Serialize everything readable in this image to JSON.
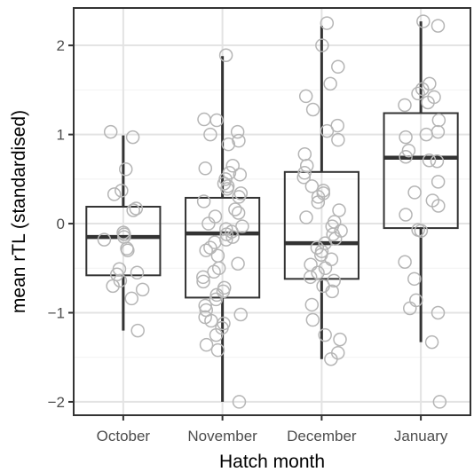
{
  "chart_data": {
    "type": "box",
    "title": "",
    "xlabel": "Hatch month",
    "ylabel": "mean rTL (standardised)",
    "categories": [
      "October",
      "November",
      "December",
      "January"
    ],
    "ylim": [
      -2.15,
      2.42
    ],
    "y_ticks": [
      -2,
      -1,
      0,
      1,
      2
    ],
    "y_tick_labels": [
      "−2",
      "−1",
      "0",
      "1",
      "2"
    ],
    "grid": true,
    "legend": "none",
    "colors": {
      "background": "#ffffff",
      "panel_border": "#333333",
      "grid_major": "#e3e3e3",
      "grid_minor": "#f2f2f2",
      "box_stroke": "#333333",
      "median": "#333333",
      "whisker": "#333333",
      "point_stroke": "#b5b5b5"
    },
    "boxes": [
      {
        "category": "October",
        "q1": -0.58,
        "median": -0.15,
        "q3": 0.19,
        "whisker_low": -1.2,
        "whisker_high": 0.99
      },
      {
        "category": "November",
        "q1": -0.83,
        "median": -0.11,
        "q3": 0.29,
        "whisker_low": -2.0,
        "whisker_high": 1.88
      },
      {
        "category": "December",
        "q1": -0.62,
        "median": -0.22,
        "q3": 0.58,
        "whisker_low": -1.52,
        "whisker_high": 2.22
      },
      {
        "category": "January",
        "q1": -0.05,
        "median": 0.74,
        "q3": 1.24,
        "whisker_low": -1.33,
        "whisker_high": 2.27
      }
    ],
    "points": [
      {
        "category": "October",
        "values": [
          1.03,
          0.97,
          0.61,
          0.37,
          0.33,
          0.17,
          0.15,
          -0.1,
          -0.12,
          -0.15,
          -0.18,
          -0.28,
          -0.3,
          -0.51,
          -0.55,
          -0.57,
          -0.64,
          -0.7,
          -0.74,
          -0.84,
          -1.2
        ]
      },
      {
        "category": "November",
        "values": [
          1.89,
          1.17,
          1.16,
          1.03,
          1.0,
          0.93,
          0.89,
          0.65,
          0.62,
          0.57,
          0.55,
          0.5,
          0.45,
          0.42,
          0.39,
          0.34,
          0.3,
          0.25,
          0.16,
          0.12,
          0.08,
          0.0,
          -0.03,
          -0.06,
          -0.09,
          -0.12,
          -0.15,
          -0.18,
          -0.21,
          -0.27,
          -0.3,
          -0.36,
          -0.45,
          -0.5,
          -0.54,
          -0.6,
          -0.65,
          -0.72,
          -0.76,
          -0.8,
          -0.85,
          -0.92,
          -0.97,
          -1.02,
          -1.05,
          -1.09,
          -1.12,
          -1.17,
          -1.25,
          -1.36,
          -1.42,
          -2.0
        ]
      },
      {
        "category": "December",
        "values": [
          2.25,
          2.0,
          1.76,
          1.57,
          1.43,
          1.28,
          1.1,
          1.04,
          0.94,
          0.78,
          0.65,
          0.57,
          0.52,
          0.42,
          0.37,
          0.34,
          0.3,
          0.24,
          0.15,
          0.07,
          0.02,
          -0.03,
          -0.08,
          -0.12,
          -0.17,
          -0.22,
          -0.27,
          -0.31,
          -0.35,
          -0.4,
          -0.46,
          -0.5,
          -0.55,
          -0.6,
          -0.64,
          -0.7,
          -0.76,
          -0.91,
          -1.08,
          -1.25,
          -1.3,
          -1.45,
          -1.52
        ]
      },
      {
        "category": "January",
        "values": [
          2.27,
          2.22,
          1.57,
          1.51,
          1.46,
          1.42,
          1.36,
          1.33,
          1.16,
          1.03,
          1.0,
          0.97,
          0.82,
          0.75,
          0.71,
          0.7,
          0.47,
          0.35,
          0.26,
          0.2,
          0.1,
          -0.08,
          -0.07,
          -0.43,
          -0.62,
          -0.86,
          -0.95,
          -1.0,
          -1.33,
          -2.0
        ]
      }
    ]
  }
}
